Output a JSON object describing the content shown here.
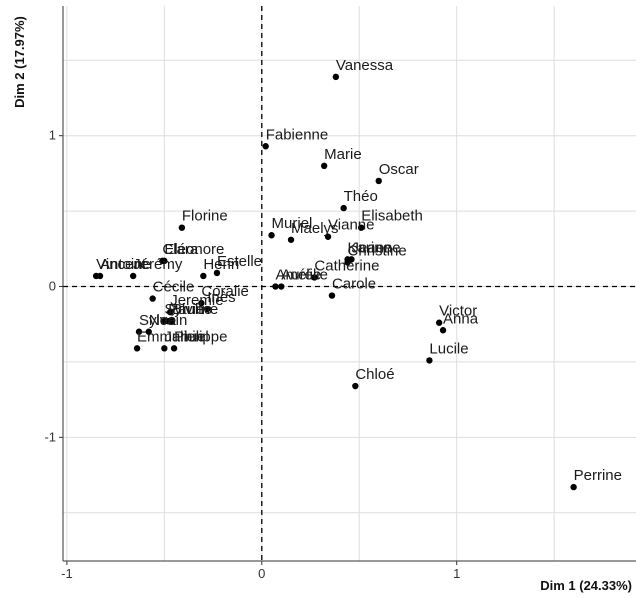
{
  "chart_data": {
    "type": "scatter",
    "xlabel": "Dim 1 (24.33%)",
    "ylabel": "Dim 2 (17.97%)",
    "xlim": [
      -1.02,
      1.92
    ],
    "ylim": [
      -1.82,
      1.86
    ],
    "x_ticks": [
      -1,
      0,
      1
    ],
    "y_ticks": [
      -1,
      0,
      1
    ],
    "grid": true,
    "reference_lines": {
      "x": 0,
      "y": 0,
      "style": "dashed"
    },
    "colors": {
      "background": "#ffffff",
      "grid": "#dedede",
      "points": "#000000",
      "text": "#1a1a1a"
    },
    "points": [
      {
        "label": "Vanessa",
        "x": 0.38,
        "y": 1.39
      },
      {
        "label": "Fabienne",
        "x": 0.02,
        "y": 0.93
      },
      {
        "label": "Marie",
        "x": 0.32,
        "y": 0.8
      },
      {
        "label": "Oscar",
        "x": 0.6,
        "y": 0.7
      },
      {
        "label": "Théo",
        "x": 0.42,
        "y": 0.52
      },
      {
        "label": "Elisabeth",
        "x": 0.51,
        "y": 0.39
      },
      {
        "label": "Muriel",
        "x": 0.05,
        "y": 0.34
      },
      {
        "label": "Maelys",
        "x": 0.15,
        "y": 0.31
      },
      {
        "label": "Vianne",
        "x": 0.34,
        "y": 0.33
      },
      {
        "label": "Karine",
        "x": 0.44,
        "y": 0.18
      },
      {
        "label": "Jeanne",
        "x": 0.46,
        "y": 0.18
      },
      {
        "label": "Christine",
        "x": 0.44,
        "y": 0.16
      },
      {
        "label": "Catherine",
        "x": 0.27,
        "y": 0.06
      },
      {
        "label": "Florine",
        "x": -0.41,
        "y": 0.39
      },
      {
        "label": "Eléonore",
        "x": -0.5,
        "y": 0.17
      },
      {
        "label": "Clara",
        "x": -0.51,
        "y": 0.17
      },
      {
        "label": "Estelle",
        "x": -0.23,
        "y": 0.09
      },
      {
        "label": "Henri",
        "x": -0.3,
        "y": 0.07
      },
      {
        "label": "Jérémy",
        "x": -0.66,
        "y": 0.07
      },
      {
        "label": "Vincent",
        "x": -0.85,
        "y": 0.07
      },
      {
        "label": "Antoine",
        "x": -0.83,
        "y": 0.07
      },
      {
        "label": "Amélie",
        "x": 0.07,
        "y": 0.0
      },
      {
        "label": "Aurélie",
        "x": 0.1,
        "y": 0.0
      },
      {
        "label": "Carole",
        "x": 0.36,
        "y": -0.06
      },
      {
        "label": "Cécile",
        "x": -0.56,
        "y": -0.08
      },
      {
        "label": "Coralie",
        "x": -0.31,
        "y": -0.11
      },
      {
        "label": "Inès",
        "x": -0.28,
        "y": -0.15
      },
      {
        "label": "Jeremie",
        "x": -0.47,
        "y": -0.17
      },
      {
        "label": "Sylvie",
        "x": -0.5,
        "y": -0.23
      },
      {
        "label": "Pauline",
        "x": -0.48,
        "y": -0.23
      },
      {
        "label": "Bruno",
        "x": -0.46,
        "y": -0.23
      },
      {
        "label": "Sylvain",
        "x": -0.63,
        "y": -0.3
      },
      {
        "label": "Noé",
        "x": -0.58,
        "y": -0.3
      },
      {
        "label": "Emmanuel",
        "x": -0.64,
        "y": -0.41
      },
      {
        "label": "Julien",
        "x": -0.5,
        "y": -0.41
      },
      {
        "label": "Philippe",
        "x": -0.45,
        "y": -0.41
      },
      {
        "label": "Victor",
        "x": 0.91,
        "y": -0.24
      },
      {
        "label": "Anna",
        "x": 0.93,
        "y": -0.29
      },
      {
        "label": "Lucile",
        "x": 0.86,
        "y": -0.49
      },
      {
        "label": "Chloé",
        "x": 0.48,
        "y": -0.66
      },
      {
        "label": "Perrine",
        "x": 1.6,
        "y": -1.33
      }
    ]
  }
}
